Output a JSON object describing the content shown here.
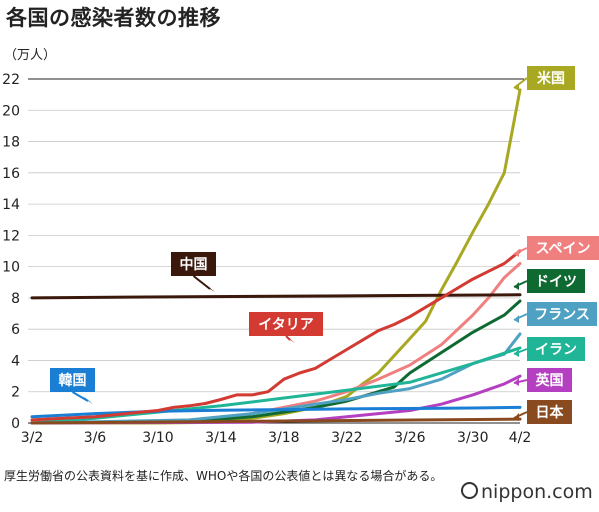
{
  "title": "各国の感染者数の推移",
  "unit_label": "（万人）",
  "footnote": "厚生労働省の公表資料を基に作成、WHOや各国の公表値とは異なる場合がある。",
  "brand": "nippon.com",
  "chart_data": {
    "type": "line",
    "x_ticks": [
      "3/2",
      "3/6",
      "3/10",
      "3/14",
      "3/18",
      "3/22",
      "3/26",
      "3/30",
      "4/2"
    ],
    "y_ticks": [
      0,
      2,
      4,
      6,
      8,
      10,
      12,
      14,
      16,
      18,
      20,
      22
    ],
    "ylim": [
      0,
      22
    ],
    "xlim": [
      0,
      31
    ],
    "grid": true,
    "series": [
      {
        "name": "米国",
        "color": "#a8a823",
        "x": [
          0,
          4,
          8,
          12,
          14,
          16,
          18,
          20,
          21,
          22,
          23,
          24,
          25,
          26,
          27,
          28,
          29,
          30,
          31
        ],
        "y": [
          0,
          0,
          0,
          0.05,
          0.3,
          0.6,
          1.0,
          1.7,
          2.5,
          3.2,
          4.3,
          5.4,
          6.5,
          8.5,
          10.3,
          12.2,
          14.0,
          16.0,
          21.3
        ]
      },
      {
        "name": "スペイン",
        "color": "#f08080",
        "x": [
          0,
          8,
          12,
          14,
          16,
          18,
          20,
          22,
          24,
          26,
          28,
          29,
          30,
          31
        ],
        "y": [
          0,
          0.05,
          0.3,
          0.6,
          1.0,
          1.4,
          2.0,
          2.8,
          3.7,
          5.0,
          6.9,
          8.0,
          9.3,
          10.2
        ]
      },
      {
        "name": "ドイツ",
        "color": "#0f6a32",
        "x": [
          0,
          10,
          14,
          18,
          20,
          22,
          23,
          24,
          26,
          28,
          30,
          31
        ],
        "y": [
          0,
          0.1,
          0.4,
          1.0,
          1.4,
          2.0,
          2.3,
          3.2,
          4.5,
          5.8,
          6.9,
          7.8
        ]
      },
      {
        "name": "フランス",
        "color": "#4fa1c4",
        "x": [
          0,
          10,
          14,
          18,
          20,
          22,
          24,
          26,
          28,
          30,
          31
        ],
        "y": [
          0,
          0.2,
          0.6,
          1.2,
          1.5,
          1.9,
          2.2,
          2.8,
          3.8,
          4.4,
          5.7
        ]
      },
      {
        "name": "イラン",
        "color": "#1fb596",
        "x": [
          0,
          4,
          8,
          12,
          16,
          20,
          24,
          28,
          31
        ],
        "y": [
          0,
          0.3,
          0.7,
          1.1,
          1.6,
          2.1,
          2.6,
          3.8,
          4.8
        ]
      },
      {
        "name": "英国",
        "color": "#b43fc1",
        "x": [
          0,
          14,
          18,
          20,
          22,
          24,
          26,
          28,
          30,
          31
        ],
        "y": [
          0,
          0.05,
          0.2,
          0.4,
          0.6,
          0.8,
          1.2,
          1.8,
          2.5,
          3.0
        ]
      },
      {
        "name": "日本",
        "color": "#8a4a1f",
        "x": [
          0,
          31
        ],
        "y": [
          0,
          0.25
        ]
      },
      {
        "name": "韓国",
        "color": "#1a7fd4",
        "x": [
          0,
          4,
          8,
          12,
          16,
          20,
          24,
          28,
          31
        ],
        "y": [
          0.4,
          0.6,
          0.75,
          0.82,
          0.86,
          0.9,
          0.93,
          0.96,
          1.0
        ]
      },
      {
        "name": "中国",
        "color": "#3a180c",
        "x": [
          0,
          10,
          20,
          31
        ],
        "y": [
          8.0,
          8.08,
          8.13,
          8.2
        ]
      },
      {
        "name": "イタリア",
        "color": "#d23a32",
        "x": [
          0,
          2,
          4,
          6,
          8,
          9,
          10,
          11,
          12,
          13,
          14,
          15,
          16,
          17,
          18,
          19,
          20,
          21,
          22,
          23,
          24,
          25,
          26,
          27,
          28,
          29,
          30,
          31
        ],
        "y": [
          0.2,
          0.3,
          0.4,
          0.6,
          0.8,
          1.0,
          1.1,
          1.25,
          1.5,
          1.8,
          1.8,
          2.0,
          2.8,
          3.2,
          3.5,
          4.1,
          4.7,
          5.3,
          5.9,
          6.3,
          6.8,
          7.4,
          8.0,
          8.6,
          9.2,
          9.7,
          10.2,
          11.0
        ]
      }
    ]
  }
}
